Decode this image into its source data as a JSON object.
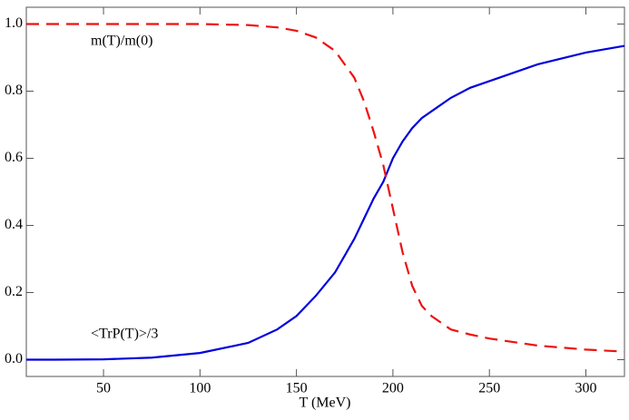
{
  "chart_data": {
    "type": "line",
    "x_label": "T (MeV)",
    "x": [
      10,
      25,
      50,
      75,
      100,
      125,
      140,
      150,
      160,
      170,
      180,
      185,
      190,
      195,
      200,
      205,
      210,
      215,
      220,
      230,
      240,
      250,
      275,
      300,
      320
    ],
    "series": [
      {
        "name": "<TrP(T)>/3",
        "color": "#0000dd",
        "dashed": false,
        "values": [
          0,
          0,
          0.001,
          0.006,
          0.02,
          0.05,
          0.09,
          0.13,
          0.19,
          0.26,
          0.36,
          0.42,
          0.48,
          0.53,
          0.6,
          0.65,
          0.69,
          0.72,
          0.74,
          0.78,
          0.81,
          0.83,
          0.88,
          0.915,
          0.935
        ]
      },
      {
        "name": "m(T)/m(0)",
        "color": "#ee1111",
        "dashed": true,
        "values": [
          1,
          1,
          1,
          1,
          1,
          0.997,
          0.99,
          0.98,
          0.96,
          0.92,
          0.84,
          0.77,
          0.68,
          0.58,
          0.45,
          0.32,
          0.22,
          0.16,
          0.13,
          0.09,
          0.075,
          0.063,
          0.042,
          0.03,
          0.024
        ]
      }
    ],
    "xlim": [
      10,
      320
    ],
    "ylim": [
      -0.05,
      1.05
    ],
    "xticks": [
      50,
      100,
      150,
      200,
      250,
      300
    ],
    "yticks": [
      {
        "value": 0,
        "label": "0.0"
      },
      {
        "value": 0.2,
        "label": "0.2"
      },
      {
        "value": 0.4,
        "label": "0.4"
      },
      {
        "value": 0.6,
        "label": "0.6"
      },
      {
        "value": 0.8,
        "label": "0.8"
      },
      {
        "value": 1,
        "label": "1.0"
      }
    ],
    "grid": false
  }
}
